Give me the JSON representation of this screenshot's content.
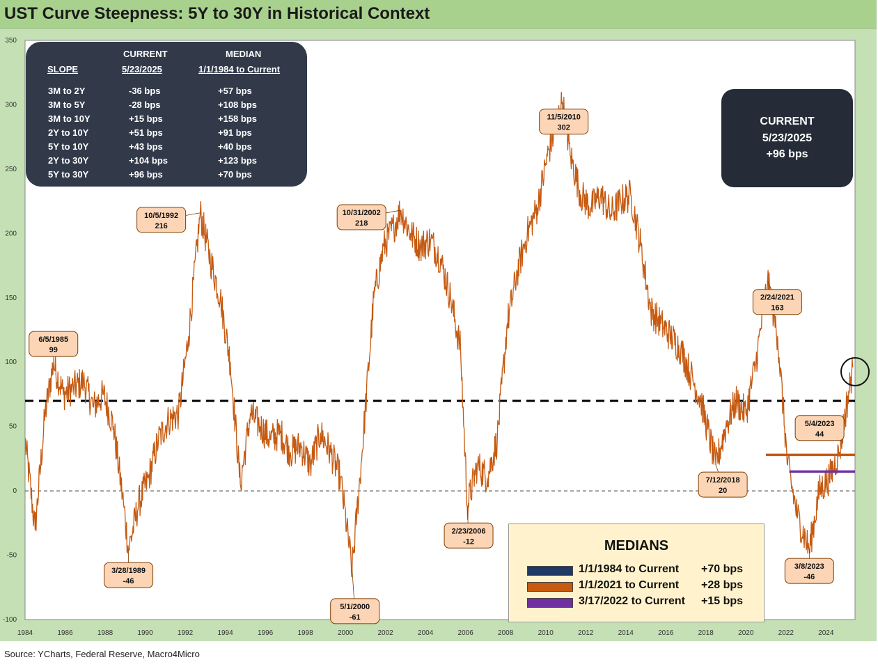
{
  "title": "UST Curve Steepness: 5Y to 30Y in Historical Context",
  "source": "Source: YCharts, Federal Reserve, Macro4Micro",
  "colors": {
    "series": "#c55a11",
    "median_1984": "#1f3864",
    "median_2021": "#c55a11",
    "median_2022": "#7030a0"
  },
  "slope_table": {
    "headers": {
      "slope": "SLOPE",
      "current_top": "CURRENT",
      "current_bottom": "5/23/2025",
      "median_top": "MEDIAN",
      "median_bottom": "1/1/1984 to Current"
    },
    "rows": [
      {
        "slope": "3M to 2Y",
        "current": "-36 bps",
        "median": "+57 bps"
      },
      {
        "slope": "3M to 5Y",
        "current": "-28 bps",
        "median": "+108 bps"
      },
      {
        "slope": "3M to 10Y",
        "current": "+15 bps",
        "median": "+158 bps"
      },
      {
        "slope": "2Y to 10Y",
        "current": "+51 bps",
        "median": "+91 bps"
      },
      {
        "slope": "5Y to 10Y",
        "current": "+43 bps",
        "median": "+40 bps"
      },
      {
        "slope": "2Y to 30Y",
        "current": "+104 bps",
        "median": "+123 bps"
      },
      {
        "slope": "5Y to 30Y",
        "current": "+96 bps",
        "median": "+70 bps"
      }
    ]
  },
  "current_box": {
    "label": "CURRENT",
    "date": "5/23/2025",
    "value": "+96 bps"
  },
  "medians_box": {
    "title": "MEDIANS",
    "items": [
      {
        "label": "1/1/1984 to Current",
        "value": "+70 bps"
      },
      {
        "label": "1/1/2021 to Current",
        "value": "+28 bps"
      },
      {
        "label": "3/17/2022 to Current",
        "value": "+15 bps"
      }
    ]
  },
  "chart_data": {
    "type": "line",
    "title": "UST Curve Steepness: 5Y to 30Y in Historical Context",
    "xlabel": "",
    "ylabel": "",
    "xlim": [
      "1984",
      "2025"
    ],
    "ylim": [
      -100,
      350
    ],
    "x_ticks": [
      "1984",
      "1986",
      "1988",
      "1990",
      "1992",
      "1994",
      "1996",
      "1998",
      "2000",
      "2002",
      "2004",
      "2006",
      "2008",
      "2010",
      "2012",
      "2014",
      "2016",
      "2018",
      "2020",
      "2022",
      "2024"
    ],
    "y_ticks": [
      -100,
      -50,
      0,
      50,
      100,
      150,
      200,
      250,
      300,
      350
    ],
    "grid": false,
    "series": [
      {
        "values_unit": "bps",
        "x": [
          "1984-01",
          "1984-07",
          "1985-01",
          "1985-06",
          "1985-12",
          "1986-06",
          "1986-12",
          "1987-06",
          "1987-12",
          "1988-06",
          "1988-12",
          "1989-03",
          "1989-09",
          "1990-03",
          "1990-09",
          "1991-03",
          "1991-09",
          "1992-03",
          "1992-10",
          "1993-04",
          "1993-10",
          "1994-04",
          "1994-10",
          "1995-04",
          "1995-10",
          "1996-04",
          "1996-10",
          "1997-04",
          "1997-10",
          "1998-04",
          "1998-10",
          "1999-04",
          "1999-10",
          "2000-05",
          "2000-11",
          "2001-06",
          "2001-12",
          "2002-06",
          "2002-10",
          "2003-04",
          "2003-10",
          "2004-04",
          "2004-10",
          "2005-04",
          "2005-10",
          "2006-02",
          "2006-08",
          "2007-02",
          "2007-08",
          "2008-02",
          "2008-08",
          "2009-02",
          "2009-08",
          "2010-02",
          "2010-11",
          "2011-04",
          "2011-10",
          "2012-04",
          "2012-10",
          "2013-04",
          "2013-10",
          "2014-04",
          "2014-10",
          "2015-04",
          "2015-10",
          "2016-04",
          "2016-10",
          "2017-04",
          "2017-10",
          "2018-07",
          "2019-01",
          "2019-07",
          "2020-01",
          "2020-07",
          "2021-02",
          "2021-08",
          "2022-02",
          "2022-08",
          "2023-03",
          "2023-09",
          "2024-03",
          "2024-09",
          "2025-05"
        ],
        "values": [
          40,
          -30,
          60,
          99,
          75,
          80,
          85,
          65,
          75,
          50,
          -10,
          -46,
          -10,
          10,
          40,
          55,
          60,
          120,
          216,
          180,
          150,
          100,
          5,
          60,
          50,
          40,
          45,
          30,
          35,
          20,
          45,
          30,
          10,
          -61,
          30,
          150,
          190,
          205,
          218,
          200,
          190,
          195,
          180,
          150,
          110,
          -12,
          20,
          10,
          40,
          130,
          170,
          200,
          220,
          260,
          302,
          260,
          230,
          220,
          230,
          215,
          225,
          230,
          190,
          140,
          130,
          120,
          110,
          90,
          70,
          20,
          50,
          70,
          60,
          100,
          163,
          120,
          20,
          -20,
          -46,
          0,
          10,
          30,
          96
        ]
      }
    ],
    "reference_lines": [
      {
        "name": "median",
        "value": 70,
        "style": "dashed-thick"
      },
      {
        "name": "zero",
        "value": 0,
        "style": "dashed-thin"
      }
    ],
    "median_segments": [
      {
        "label": "1/1/2021 to Current",
        "value": 28,
        "from": "2021-01",
        "to": "2025-05"
      },
      {
        "label": "3/17/2022 to Current",
        "value": 15,
        "from": "2022-03",
        "to": "2025-05"
      }
    ],
    "annotations": [
      {
        "date": "6/5/1985",
        "value": 99,
        "x": "1985-06"
      },
      {
        "date": "3/28/1989",
        "value": -46,
        "x": "1989-03"
      },
      {
        "date": "10/5/1992",
        "value": 216,
        "x": "1992-10"
      },
      {
        "date": "5/1/2000",
        "value": -61,
        "x": "2000-05"
      },
      {
        "date": "10/31/2002",
        "value": 218,
        "x": "2002-10"
      },
      {
        "date": "2/23/2006",
        "value": -12,
        "x": "2006-02"
      },
      {
        "date": "11/5/2010",
        "value": 302,
        "x": "2010-11"
      },
      {
        "date": "7/12/2018",
        "value": 20,
        "x": "2018-07"
      },
      {
        "date": "2/24/2021",
        "value": 163,
        "x": "2021-02"
      },
      {
        "date": "5/4/2023",
        "value": 44,
        "x": "2023-05"
      },
      {
        "date": "3/8/2023",
        "value": -46,
        "x": "2023-03"
      }
    ]
  }
}
